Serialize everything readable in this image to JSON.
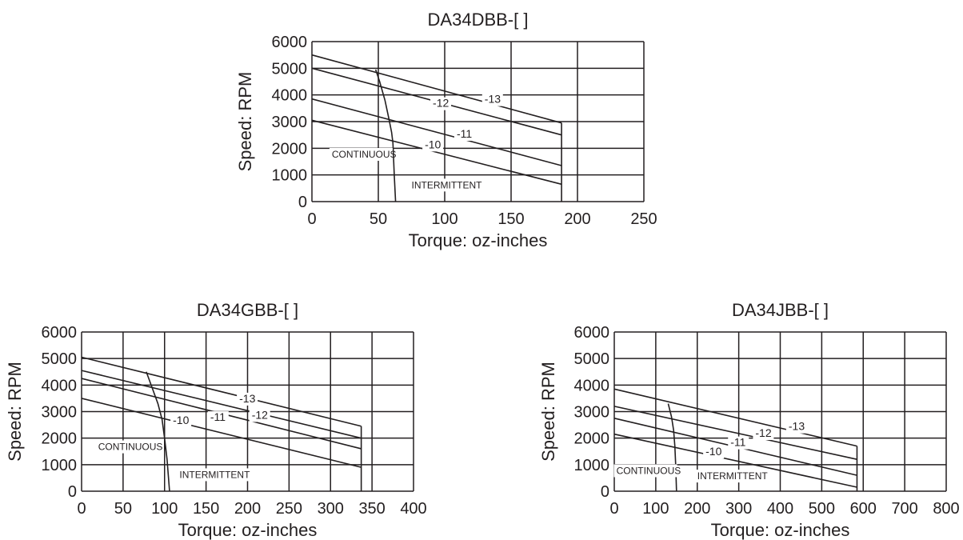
{
  "chart_data": [
    {
      "type": "line",
      "title": "DA34DBB-[ ]",
      "xlabel": "Torque: oz-inches",
      "ylabel": "Speed: RPM",
      "xlim": [
        0,
        250
      ],
      "ylim": [
        0,
        6000
      ],
      "x_ticks": [
        0,
        50,
        100,
        150,
        200,
        250
      ],
      "y_ticks": [
        0,
        1000,
        2000,
        3000,
        4000,
        5000,
        6000
      ],
      "grid": true,
      "region_labels": [
        "CONTINUOUS",
        "INTERMITTENT"
      ],
      "series": [
        {
          "name": "-10",
          "x": [
            0,
            188
          ],
          "y": [
            3050,
            650
          ]
        },
        {
          "name": "-11",
          "x": [
            0,
            188
          ],
          "y": [
            3850,
            1350
          ]
        },
        {
          "name": "-12",
          "x": [
            0,
            188
          ],
          "y": [
            5000,
            2500
          ]
        },
        {
          "name": "-13",
          "x": [
            0,
            188
          ],
          "y": [
            5500,
            2950
          ]
        }
      ],
      "continuous_boundary": {
        "x": [
          48,
          51,
          55,
          58,
          60,
          61,
          62,
          63
        ],
        "y": [
          4950,
          4500,
          3800,
          3100,
          2600,
          2200,
          1000,
          0
        ]
      },
      "max_torque": {
        "x": [
          188,
          188
        ],
        "y": [
          0,
          2950
        ]
      }
    },
    {
      "type": "line",
      "title": "DA34GBB-[ ]",
      "xlabel": "Torque: oz-inches",
      "ylabel": "Speed: RPM",
      "xlim": [
        0,
        400
      ],
      "ylim": [
        0,
        6000
      ],
      "x_ticks": [
        0,
        50,
        100,
        150,
        200,
        250,
        300,
        350,
        400
      ],
      "y_ticks": [
        0,
        1000,
        2000,
        3000,
        4000,
        5000,
        6000
      ],
      "grid": true,
      "region_labels": [
        "CONTINUOUS",
        "INTERMITTENT"
      ],
      "series": [
        {
          "name": "-10",
          "x": [
            0,
            337
          ],
          "y": [
            3500,
            900
          ]
        },
        {
          "name": "-11",
          "x": [
            0,
            337
          ],
          "y": [
            4250,
            1600
          ]
        },
        {
          "name": "-12",
          "x": [
            0,
            337
          ],
          "y": [
            4550,
            2000
          ]
        },
        {
          "name": "-13",
          "x": [
            0,
            337
          ],
          "y": [
            5050,
            2450
          ]
        }
      ],
      "continuous_boundary": {
        "x": [
          78,
          85,
          92,
          97,
          100,
          103,
          106
        ],
        "y": [
          4500,
          3900,
          3300,
          2700,
          2000,
          1200,
          0
        ]
      },
      "max_torque": {
        "x": [
          337,
          337
        ],
        "y": [
          0,
          2450
        ]
      }
    },
    {
      "type": "line",
      "title": "DA34JBB-[ ]",
      "xlabel": "Torque: oz-inches",
      "ylabel": "Speed: RPM",
      "xlim": [
        0,
        800
      ],
      "ylim": [
        0,
        6000
      ],
      "x_ticks": [
        0,
        100,
        200,
        300,
        400,
        500,
        600,
        700,
        800
      ],
      "y_ticks": [
        0,
        1000,
        2000,
        3000,
        4000,
        5000,
        6000
      ],
      "grid": true,
      "region_labels": [
        "CONTINUOUS",
        "INTERMITTENT"
      ],
      "series": [
        {
          "name": "-10",
          "x": [
            0,
            585
          ],
          "y": [
            2150,
            150
          ]
        },
        {
          "name": "-11",
          "x": [
            0,
            585
          ],
          "y": [
            2750,
            600
          ]
        },
        {
          "name": "-12",
          "x": [
            0,
            585
          ],
          "y": [
            3200,
            1200
          ]
        },
        {
          "name": "-13",
          "x": [
            0,
            585
          ],
          "y": [
            3850,
            1700
          ]
        }
      ],
      "continuous_boundary": {
        "x": [
          130,
          138,
          143,
          146,
          148,
          150
        ],
        "y": [
          3300,
          2800,
          2300,
          1700,
          1000,
          0
        ]
      },
      "max_torque": {
        "x": [
          585,
          585
        ],
        "y": [
          0,
          1700
        ]
      }
    }
  ]
}
